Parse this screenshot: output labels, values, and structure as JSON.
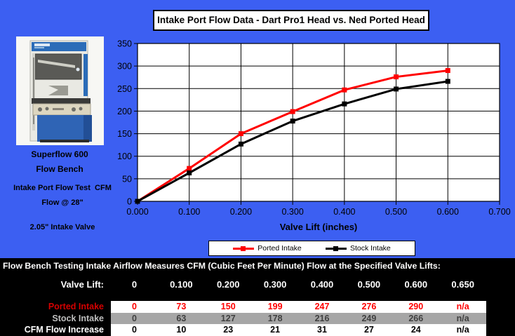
{
  "chart": {
    "title": "Intake Port Flow Data - Dart Pro1 Head vs. Ned Ported Head",
    "xlabel": "Valve Lift (inches)"
  },
  "left_panel": {
    "photo_caption_line1": "Superflow 600",
    "photo_caption_line2": "Flow Bench",
    "test_line1": "Intake Port Flow Test  CFM",
    "test_line2": "Flow @ 28\"",
    "valve_line": "2.05\" Intake Valve"
  },
  "chart_data": {
    "type": "line",
    "x": [
      0.0,
      0.1,
      0.2,
      0.3,
      0.4,
      0.5,
      0.6
    ],
    "series": [
      {
        "name": "Ported Intake",
        "color": "#ff0000",
        "values": [
          0,
          73,
          150,
          199,
          247,
          276,
          290
        ]
      },
      {
        "name": "Stock Intake",
        "color": "#000000",
        "values": [
          0,
          63,
          127,
          178,
          216,
          249,
          266
        ]
      }
    ],
    "title": "Intake Port Flow Data - Dart Pro1 Head vs. Ned Ported Head",
    "xlabel": "Valve Lift (inches)",
    "ylabel": "",
    "xlim": [
      0,
      0.7
    ],
    "ylim": [
      0,
      350
    ],
    "x_ticks": [
      "0.000",
      "0.100",
      "0.200",
      "0.300",
      "0.400",
      "0.500",
      "0.600",
      "0.700"
    ],
    "y_ticks": [
      0,
      50,
      100,
      150,
      200,
      250,
      300,
      350
    ],
    "grid": true,
    "legend_position": "bottom",
    "plot_bg": "#ffffff",
    "page_bg": "#3c5ff2"
  },
  "table": {
    "header": "Flow Bench Testing Intake Airflow Measures CFM (Cubic Feet Per Minute) Flow at the Specified Valve Lifts:",
    "valve_lift_label": "Valve Lift:",
    "valve_lift_values": [
      "0",
      "0.100",
      "0.200",
      "0.300",
      "0.400",
      "0.500",
      "0.600",
      "0.650"
    ],
    "rows": [
      {
        "label": "Ported Intake",
        "values": [
          "0",
          "73",
          "150",
          "199",
          "247",
          "276",
          "290",
          "n/a"
        ],
        "band_bg": "#ffffff",
        "value_color": "#ff0000",
        "label_color": "#d40000"
      },
      {
        "label": "Stock Intake",
        "values": [
          "0",
          "63",
          "127",
          "178",
          "216",
          "249",
          "266",
          "n/a"
        ],
        "band_bg": "#a6a6a6",
        "value_color": "#3f3f3f",
        "label_color": "#bfbfbf"
      },
      {
        "label": "CFM Flow Increase",
        "values": [
          "0",
          "10",
          "23",
          "21",
          "31",
          "27",
          "24",
          "n/a"
        ],
        "band_bg": "#ffffff",
        "value_color": "#000000",
        "label_color": "#ffffff"
      }
    ]
  }
}
